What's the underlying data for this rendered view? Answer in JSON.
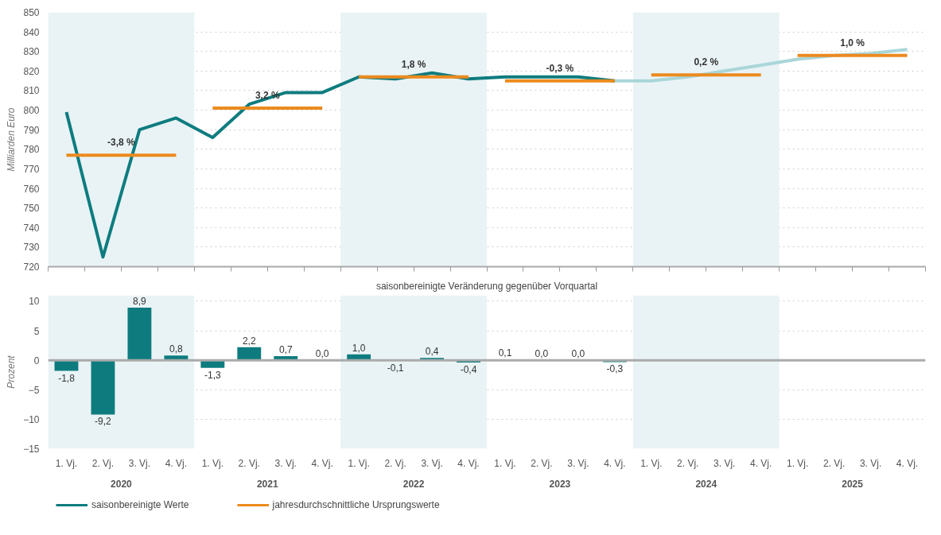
{
  "chart_data": [
    {
      "type": "line",
      "ylabel": "Milliarden Euro",
      "ylim": [
        720,
        850
      ],
      "yticks": [
        720,
        730,
        740,
        750,
        760,
        770,
        780,
        790,
        800,
        810,
        820,
        830,
        840,
        850
      ],
      "categories": [
        null,
        null,
        null,
        null,
        null,
        null,
        null,
        null,
        null,
        null,
        null,
        null,
        null,
        null,
        null,
        null,
        null,
        null,
        null,
        null,
        null,
        null,
        null,
        null
      ],
      "tick_labels": "y",
      "grid": "y",
      "legend": "bottom",
      "line_style": "solid",
      "marker": "none",
      "series": [
        {
          "name": "saisonbereinigte Werte",
          "color": "#0e7c7f",
          "values": [
            799,
            725,
            790,
            796,
            786,
            803,
            809,
            809,
            817,
            816,
            819,
            816,
            817,
            817,
            817,
            815,
            null,
            null,
            null,
            null,
            null,
            null,
            null,
            null
          ]
        },
        {
          "color": "#a9d6d9",
          "values": [
            null,
            null,
            null,
            null,
            null,
            null,
            null,
            null,
            null,
            null,
            null,
            null,
            null,
            null,
            null,
            815,
            815,
            817,
            820,
            823,
            826,
            828,
            829,
            831
          ]
        },
        {
          "name": "jahresdurchschnittliche Ursprungswerte",
          "color": "#ec8a1e",
          "values": [
            777,
            777,
            777,
            777,
            null,
            null,
            null,
            null,
            null,
            null,
            null,
            null,
            null,
            null,
            null,
            null,
            null,
            null,
            null,
            null,
            null,
            null,
            null,
            null
          ]
        },
        {
          "color": "#ec8a1e",
          "values": [
            null,
            null,
            null,
            null,
            801,
            801,
            801,
            801,
            null,
            null,
            null,
            null,
            null,
            null,
            null,
            null,
            null,
            null,
            null,
            null,
            null,
            null,
            null,
            null
          ]
        },
        {
          "color": "#ec8a1e",
          "values": [
            null,
            null,
            null,
            null,
            null,
            null,
            null,
            null,
            817,
            817,
            817,
            817,
            null,
            null,
            null,
            null,
            null,
            null,
            null,
            null,
            null,
            null,
            null,
            null
          ]
        },
        {
          "color": "#ec8a1e",
          "values": [
            null,
            null,
            null,
            null,
            null,
            null,
            null,
            null,
            null,
            null,
            null,
            null,
            815,
            815,
            815,
            815,
            null,
            null,
            null,
            null,
            null,
            null,
            null,
            null
          ]
        },
        {
          "color": "#ec8a1e",
          "values": [
            null,
            null,
            null,
            null,
            null,
            null,
            null,
            null,
            null,
            null,
            null,
            null,
            null,
            null,
            null,
            null,
            818,
            818,
            818,
            818,
            null,
            null,
            null,
            null
          ]
        },
        {
          "color": "#ec8a1e",
          "values": [
            null,
            null,
            null,
            null,
            null,
            null,
            null,
            null,
            null,
            null,
            null,
            null,
            null,
            null,
            null,
            null,
            null,
            null,
            null,
            null,
            828,
            828,
            828,
            828
          ]
        }
      ],
      "annotations": [
        "-3,8 %",
        "3,2 %",
        "1,8 %",
        "-0,3 %",
        "0,2 %",
        "1,0 %"
      ]
    },
    {
      "type": "bar",
      "title": "saisonbereinigte Veränderung gegenüber Vorquartal",
      "ylabel": "Prozent",
      "ylim": [
        -15,
        11
      ],
      "yticks": [
        -15,
        -10,
        -5,
        0,
        5,
        10
      ],
      "grid": "y",
      "color": "#0e7c7f",
      "categories": [
        "1. Vj.",
        "2. Vj.",
        "3. Vj.",
        "4. Vj.",
        "1. Vj.",
        "2. Vj.",
        "3. Vj.",
        "4. Vj.",
        "1. Vj.",
        "2. Vj.",
        "3. Vj.",
        "4. Vj.",
        "1. Vj.",
        "2. Vj.",
        "3. Vj.",
        "4. Vj.",
        "1. Vj.",
        "2. Vj.",
        "3. Vj.",
        "4. Vj.",
        "1. Vj.",
        "2. Vj.",
        "3. Vj.",
        "4. Vj."
      ],
      "values": [
        -1.8,
        -9.2,
        8.9,
        0.8,
        -1.3,
        2.2,
        0.7,
        0.0,
        1.0,
        -0.1,
        0.4,
        -0.4,
        0.1,
        0.0,
        0.0,
        -0.3,
        null,
        null,
        null,
        null,
        null,
        null,
        null,
        null
      ],
      "value_labels": [
        "-1,8",
        "-9,2",
        "8,9",
        "0,8",
        "-1,3",
        "2,2",
        "0,7",
        "0,0",
        "1,0",
        "-0,1",
        "0,4",
        "-0,4",
        "0,1",
        "0,0",
        "0,0",
        "-0,3",
        null,
        null,
        null,
        null,
        null,
        null,
        null,
        null
      ],
      "ref_lines": [
        {
          "axis": "y",
          "value": 0,
          "color": "#aaaaaa"
        }
      ],
      "annotations": [
        "2020",
        "2021",
        "2022",
        "2023",
        "2024",
        "2025"
      ]
    }
  ]
}
